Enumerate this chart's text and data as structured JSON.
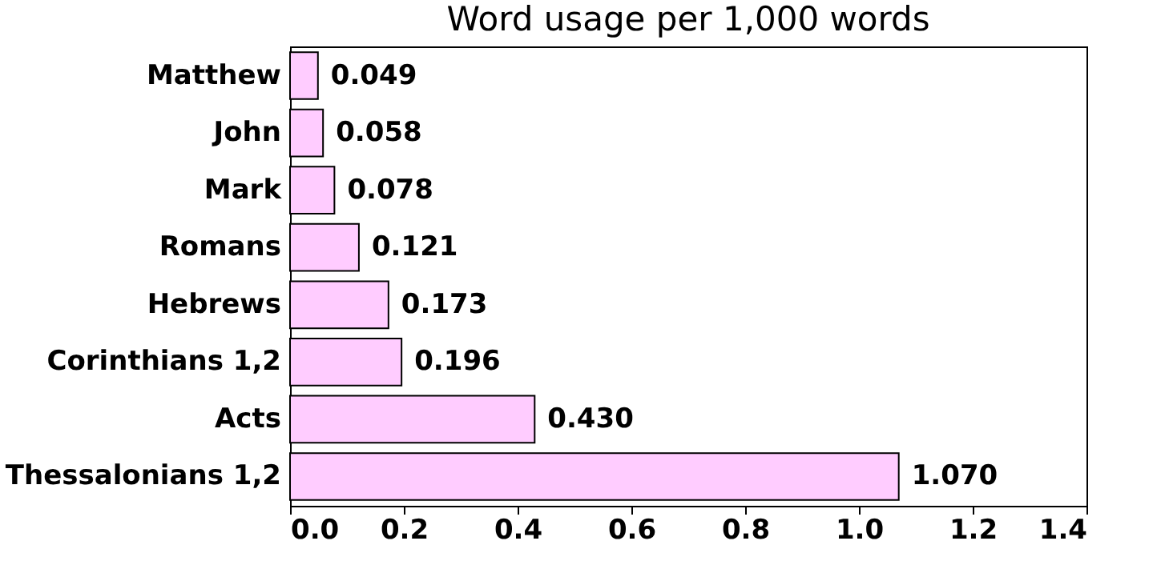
{
  "chart_data": {
    "type": "bar",
    "orientation": "horizontal",
    "title": "Word usage per 1,000 words",
    "categories": [
      "Matthew",
      "John",
      "Mark",
      "Romans",
      "Hebrews",
      "Corinthians 1,2",
      "Acts",
      "Thessalonians 1,2"
    ],
    "values": [
      0.049,
      0.058,
      0.078,
      0.121,
      0.173,
      0.196,
      0.43,
      1.07
    ],
    "value_labels": [
      "0.049",
      "0.058",
      "0.078",
      "0.121",
      "0.173",
      "0.196",
      "0.430",
      "1.070"
    ],
    "color": "#ffccff",
    "xlim": [
      0,
      1.4
    ],
    "xticks": [
      {
        "value": 0,
        "label": "0.0"
      },
      0.2,
      0.4,
      0.6,
      0.8,
      {
        "value": 1,
        "label": "1.0"
      },
      1.2,
      1.4
    ],
    "grid": false
  }
}
